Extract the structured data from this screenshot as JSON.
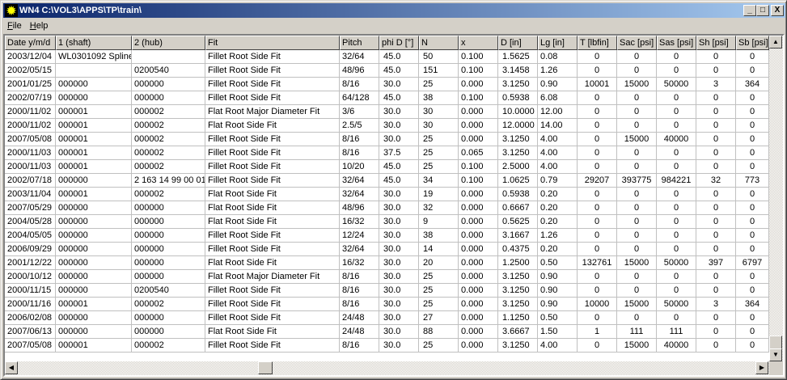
{
  "window": {
    "title": "WN4  C:\\VOL3\\APPS\\TP\\train\\",
    "minimize": "_",
    "maximize": "□",
    "close": "X"
  },
  "menu": [
    "File",
    "Help"
  ],
  "columns": [
    "Date  y/m/d",
    "1 (shaft)",
    "2 (hub)",
    "Fit",
    "Pitch",
    "phi D [°]",
    "N",
    "x",
    "D [in]",
    "Lg [in]",
    "T [lbfin]",
    "Sac [psi]",
    "Sas [psi]",
    "Sh [psi]",
    "Sb [psi]"
  ],
  "rows": [
    [
      "2003/12/04",
      "WL0301092 Spline",
      "",
      "Fillet Root Side Fit",
      "32/64",
      "45.0",
      "50",
      "0.100",
      "1.5625",
      "0.08",
      "0",
      "0",
      "0",
      "0",
      "0"
    ],
    [
      "2002/05/15",
      "",
      "0200540",
      "Fillet Root Side Fit",
      "48/96",
      "45.0",
      "151",
      "0.100",
      "3.1458",
      "1.26",
      "0",
      "0",
      "0",
      "0",
      "0"
    ],
    [
      "2001/01/25",
      "000000",
      "000000",
      "Fillet Root Side Fit",
      "8/16",
      "30.0",
      "25",
      "0.000",
      "3.1250",
      "0.90",
      "10001",
      "15000",
      "50000",
      "3",
      "364"
    ],
    [
      "2002/07/19",
      "000000",
      "000000",
      "Fillet Root Side Fit",
      "64/128",
      "45.0",
      "38",
      "0.100",
      "0.5938",
      "6.08",
      "0",
      "0",
      "0",
      "0",
      "0"
    ],
    [
      "2000/11/02",
      "000001",
      "000002",
      "Flat Root Major Diameter Fit",
      "3/6",
      "30.0",
      "30",
      "0.000",
      "10.0000",
      "12.00",
      "0",
      "0",
      "0",
      "0",
      "0"
    ],
    [
      "2000/11/02",
      "000001",
      "000002",
      "Flat Root Side Fit",
      "2.5/5",
      "30.0",
      "30",
      "0.000",
      "12.0000",
      "14.00",
      "0",
      "0",
      "0",
      "0",
      "0"
    ],
    [
      "2007/05/08",
      "000001",
      "000002",
      "Fillet Root Side Fit",
      "8/16",
      "30.0",
      "25",
      "0.000",
      "3.1250",
      "4.00",
      "0",
      "15000",
      "40000",
      "0",
      "0"
    ],
    [
      "2000/11/03",
      "000001",
      "000002",
      "Fillet Root Side Fit",
      "8/16",
      "37.5",
      "25",
      "0.065",
      "3.1250",
      "4.00",
      "0",
      "0",
      "0",
      "0",
      "0"
    ],
    [
      "2000/11/03",
      "000001",
      "000002",
      "Fillet Root Side Fit",
      "10/20",
      "45.0",
      "25",
      "0.100",
      "2.5000",
      "4.00",
      "0",
      "0",
      "0",
      "0",
      "0"
    ],
    [
      "2002/07/18",
      "000000",
      "2 163 14 99 00 01",
      "Fillet Root Side Fit",
      "32/64",
      "45.0",
      "34",
      "0.100",
      "1.0625",
      "0.79",
      "29207",
      "393775",
      "984221",
      "32",
      "773"
    ],
    [
      "2003/11/04",
      "000001",
      "000002",
      "Flat Root Side Fit",
      "32/64",
      "30.0",
      "19",
      "0.000",
      "0.5938",
      "0.20",
      "0",
      "0",
      "0",
      "0",
      "0"
    ],
    [
      "2007/05/29",
      "000000",
      "000000",
      "Flat Root Side Fit",
      "48/96",
      "30.0",
      "32",
      "0.000",
      "0.6667",
      "0.20",
      "0",
      "0",
      "0",
      "0",
      "0"
    ],
    [
      "2004/05/28",
      "000000",
      "000000",
      "Flat Root Side Fit",
      "16/32",
      "30.0",
      "9",
      "0.000",
      "0.5625",
      "0.20",
      "0",
      "0",
      "0",
      "0",
      "0"
    ],
    [
      "2004/05/05",
      "000000",
      "000000",
      "Fillet Root Side Fit",
      "12/24",
      "30.0",
      "38",
      "0.000",
      "3.1667",
      "1.26",
      "0",
      "0",
      "0",
      "0",
      "0"
    ],
    [
      "2006/09/29",
      "000000",
      "000000",
      "Fillet Root Side Fit",
      "32/64",
      "30.0",
      "14",
      "0.000",
      "0.4375",
      "0.20",
      "0",
      "0",
      "0",
      "0",
      "0"
    ],
    [
      "2001/12/22",
      "000000",
      "000000",
      "Flat Root Side Fit",
      "16/32",
      "30.0",
      "20",
      "0.000",
      "1.2500",
      "0.50",
      "132761",
      "15000",
      "50000",
      "397",
      "6797"
    ],
    [
      "2000/10/12",
      "000000",
      "000000",
      "Flat Root Major Diameter Fit",
      "8/16",
      "30.0",
      "25",
      "0.000",
      "3.1250",
      "0.90",
      "0",
      "0",
      "0",
      "0",
      "0"
    ],
    [
      "2000/11/15",
      "000000",
      "0200540",
      "Fillet Root Side Fit",
      "8/16",
      "30.0",
      "25",
      "0.000",
      "3.1250",
      "0.90",
      "0",
      "0",
      "0",
      "0",
      "0"
    ],
    [
      "2000/11/16",
      "000001",
      "000002",
      "Fillet Root Side Fit",
      "8/16",
      "30.0",
      "25",
      "0.000",
      "3.1250",
      "0.90",
      "10000",
      "15000",
      "50000",
      "3",
      "364"
    ],
    [
      "2006/02/08",
      "000000",
      "000000",
      "Fillet Root Side Fit",
      "24/48",
      "30.0",
      "27",
      "0.000",
      "1.1250",
      "0.50",
      "0",
      "0",
      "0",
      "0",
      "0"
    ],
    [
      "2007/06/13",
      "000000",
      "000000",
      "Flat Root Side Fit",
      "24/48",
      "30.0",
      "88",
      "0.000",
      "3.6667",
      "1.50",
      "1",
      "111",
      "111",
      "0",
      "0"
    ],
    [
      "2007/05/08",
      "000001",
      "000002",
      "Fillet Root Side Fit",
      "8/16",
      "30.0",
      "25",
      "0.000",
      "3.1250",
      "4.00",
      "0",
      "15000",
      "40000",
      "0",
      "0"
    ]
  ]
}
